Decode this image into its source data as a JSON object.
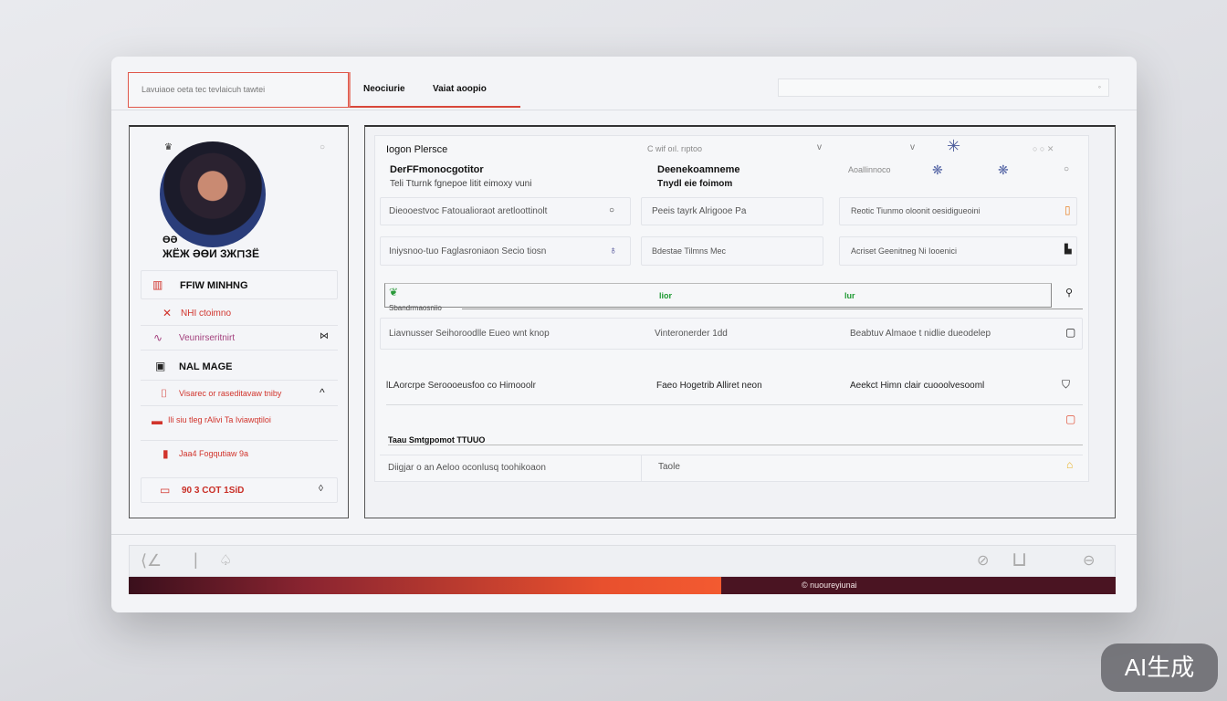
{
  "header": {
    "search_text": "Lavuiaoe oeta tec tevlaicuh tawtei",
    "tabs": [
      "Neociurie",
      "Vaiat aoopio"
    ],
    "right_search_placeholder": ""
  },
  "profile": {
    "line1": "ӨӘ",
    "line2": "ЖЁЖ ӘӨИ ЗЖ⊓ЗЁ"
  },
  "sidebar": {
    "items": [
      {
        "label": "FFIW MINHNG",
        "bold": true
      },
      {
        "label": "NHI ctoimno"
      },
      {
        "label": "Veunirseritnirt"
      },
      {
        "label": "NAL MAGE",
        "bold": true
      },
      {
        "label": "Visarec or raseditavaw tniby"
      },
      {
        "label": "Ili siu tleg rAlivi Ta Iviawqtiloi"
      },
      {
        "label": "Jaa4 Fogqutiaw 9a"
      },
      {
        "label": "90 3 COT 1SiD"
      }
    ]
  },
  "main": {
    "title": "Iogon Plersce",
    "filter_text": "C wif oıl. rıptoo",
    "col1_head": "DerFFmonocgotitor",
    "col1_sub": "Teli Tturnk fgnepoe litit eimoxy vuni",
    "col2_head": "Deenekoamneme",
    "col2_sub": "Tnydl eie foimom",
    "col3_head": "Aoallinnoco",
    "row1": [
      "Dieooestvoc  Fatoualioraot  aretloottinolt",
      "Peeis  tayrk Alrigooe Pa",
      "Reotic Tiunmo oloonit oesidigueoini"
    ],
    "row2": [
      "Iniysnoo-tuo  Faglasroniaon  Secio tiosn",
      "Bdestae Tilmns Mec",
      "Acriset Geenitneg Ni Iooenici"
    ],
    "tags": [
      "lior",
      "lur"
    ],
    "section_label": "Sbandrmaosniio",
    "row3": [
      "Liavnusser  Seihoroodlle Eueo wnt knop",
      "Vinteronerder 1dd",
      "Beabtuv  Almaoe t nidlie dueodelep"
    ],
    "row4": [
      "lLAorcrpe  Seroooeusfoo  co  Himooolr",
      "Faeo Hogetrib Alliret neon",
      "Aeekct Himn  clair  cuooolvesooml"
    ],
    "section2_label": "Taau Smtgpomot  TTUUO",
    "row5": [
      "Diigjar  o  an  Aeloo oconlusq  toohikoaon",
      "Taole"
    ]
  },
  "footer": {
    "progress_percent": 60,
    "progress_label": "nuoureyiunai"
  },
  "watermark": "AI生成"
}
